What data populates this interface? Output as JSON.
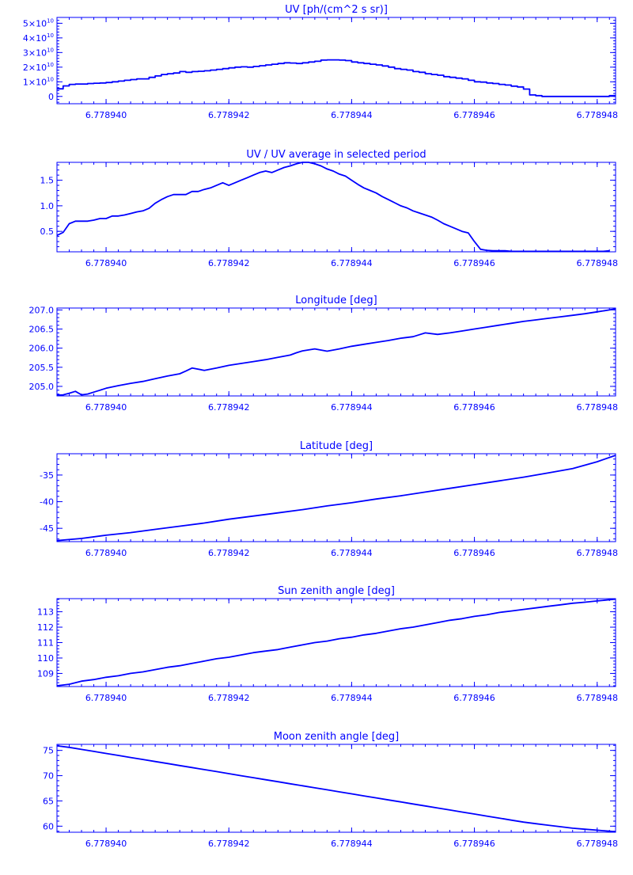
{
  "colors": {
    "ink": "#0000ff",
    "background": "#ffffff"
  },
  "x_ticks": [
    {
      "value": 6.77894,
      "label": "6.778940"
    },
    {
      "value": 6.778942,
      "label": "6.778942"
    },
    {
      "value": 6.778944,
      "label": "6.778944"
    },
    {
      "value": 6.778946,
      "label": "6.778946"
    },
    {
      "value": 6.778948,
      "label": "6.778948"
    }
  ],
  "chart_data": [
    {
      "type": "line",
      "step": true,
      "title": "UV [ph/(cm^2 s sr)]",
      "xlim": [
        6.7789392,
        6.7789483
      ],
      "ylim": [
        -5000000000.0,
        54000000000.0
      ],
      "yticks": [
        {
          "value": 0,
          "label": "0"
        },
        {
          "value": 10000000000.0,
          "label": "1×10",
          "sup": "10"
        },
        {
          "value": 20000000000.0,
          "label": "2×10",
          "sup": "10"
        },
        {
          "value": 30000000000.0,
          "label": "3×10",
          "sup": "10"
        },
        {
          "value": 40000000000.0,
          "label": "4×10",
          "sup": "10"
        },
        {
          "value": 50000000000.0,
          "label": "5×10",
          "sup": "10"
        }
      ],
      "minor_y": 2000000000.0,
      "series": [
        {
          "x": [
            6.7789392,
            6.7789393,
            6.7789394,
            6.7789395,
            6.7789396,
            6.7789397,
            6.7789398,
            6.7789399,
            6.77894,
            6.7789401,
            6.7789402,
            6.7789403,
            6.7789404,
            6.7789405,
            6.7789406,
            6.7789407,
            6.7789408,
            6.7789409,
            6.778941,
            6.7789411,
            6.7789412,
            6.7789413,
            6.7789414,
            6.7789415,
            6.7789416,
            6.7789417,
            6.7789418,
            6.7789419,
            6.778942,
            6.7789421,
            6.7789422,
            6.7789423,
            6.7789424,
            6.7789425,
            6.7789426,
            6.7789427,
            6.7789428,
            6.7789429,
            6.778943,
            6.7789431,
            6.7789432,
            6.7789433,
            6.7789434,
            6.7789435,
            6.7789436,
            6.7789437,
            6.7789438,
            6.7789439,
            6.778944,
            6.7789441,
            6.7789442,
            6.7789443,
            6.7789444,
            6.7789445,
            6.7789446,
            6.7789447,
            6.7789448,
            6.7789449,
            6.778945,
            6.7789451,
            6.7789452,
            6.7789453,
            6.7789454,
            6.7789455,
            6.7789456,
            6.7789457,
            6.7789458,
            6.7789459,
            6.778946,
            6.7789461,
            6.7789462,
            6.7789463,
            6.7789464,
            6.7789465,
            6.7789466,
            6.7789467,
            6.7789468,
            6.7789469,
            6.778947,
            6.7789471,
            6.7789472,
            6.7789473,
            6.7789474,
            6.7789475,
            6.7789476,
            6.7789477,
            6.7789478,
            6.7789479,
            6.778948,
            6.7789481,
            6.7789482
          ],
          "y": [
            5200000000.0,
            7200000000.0,
            8200000000.0,
            8500000000.0,
            8500000000.0,
            8800000000.0,
            9000000000.0,
            9200000000.0,
            9500000000.0,
            10000000000.0,
            10500000000.0,
            11000000000.0,
            11500000000.0,
            12000000000.0,
            12000000000.0,
            13000000000.0,
            14000000000.0,
            15000000000.0,
            15500000000.0,
            16000000000.0,
            17000000000.0,
            16500000000.0,
            17000000000.0,
            17200000000.0,
            17500000000.0,
            18000000000.0,
            18500000000.0,
            19000000000.0,
            19500000000.0,
            20000000000.0,
            20200000000.0,
            20000000000.0,
            20500000000.0,
            21000000000.0,
            21500000000.0,
            22000000000.0,
            22500000000.0,
            23000000000.0,
            22800000000.0,
            22500000000.0,
            23000000000.0,
            23500000000.0,
            24000000000.0,
            24800000000.0,
            25000000000.0,
            25000000000.0,
            24800000000.0,
            24500000000.0,
            23500000000.0,
            23000000000.0,
            22500000000.0,
            22000000000.0,
            21500000000.0,
            20800000000.0,
            20000000000.0,
            19000000000.0,
            18500000000.0,
            18000000000.0,
            17000000000.0,
            16500000000.0,
            15500000000.0,
            15000000000.0,
            14500000000.0,
            13500000000.0,
            13000000000.0,
            12500000000.0,
            12000000000.0,
            11000000000.0,
            10000000000.0,
            9800000000.0,
            9200000000.0,
            8800000000.0,
            8200000000.0,
            7800000000.0,
            7000000000.0,
            6500000000.0,
            5000000000.0,
            1000000000.0,
            500000000.0,
            0,
            0,
            0,
            0,
            0,
            0,
            0,
            0,
            0,
            0,
            0,
            500000000.0
          ]
        }
      ]
    },
    {
      "type": "line",
      "title": "UV / UV average in selected period",
      "xlim": [
        6.7789392,
        6.7789483
      ],
      "ylim": [
        0.1,
        1.85
      ],
      "yticks": [
        {
          "value": 0.5,
          "label": "0.5"
        },
        {
          "value": 1.0,
          "label": "1.0"
        },
        {
          "value": 1.5,
          "label": "1.5"
        }
      ],
      "minor_y": 0.1,
      "series": [
        {
          "x": [
            6.7789392,
            6.7789393,
            6.7789394,
            6.7789395,
            6.7789396,
            6.7789397,
            6.7789398,
            6.7789399,
            6.77894,
            6.7789401,
            6.7789402,
            6.7789403,
            6.7789404,
            6.7789405,
            6.7789406,
            6.7789407,
            6.7789408,
            6.7789409,
            6.778941,
            6.7789411,
            6.7789412,
            6.7789413,
            6.7789414,
            6.7789415,
            6.7789416,
            6.7789417,
            6.7789418,
            6.7789419,
            6.778942,
            6.7789421,
            6.7789422,
            6.7789423,
            6.7789424,
            6.7789425,
            6.7789426,
            6.7789427,
            6.7789428,
            6.7789429,
            6.778943,
            6.7789431,
            6.7789432,
            6.7789433,
            6.7789434,
            6.7789435,
            6.7789436,
            6.7789437,
            6.7789438,
            6.7789439,
            6.778944,
            6.7789441,
            6.7789442,
            6.7789443,
            6.7789444,
            6.7789445,
            6.7789446,
            6.7789447,
            6.7789448,
            6.7789449,
            6.778945,
            6.7789451,
            6.7789452,
            6.7789453,
            6.7789454,
            6.7789455,
            6.7789456,
            6.7789457,
            6.7789458,
            6.7789459,
            6.778946,
            6.7789461,
            6.7789462,
            6.7789463,
            6.7789464,
            6.7789465,
            6.7789466,
            6.7789467,
            6.7789468,
            6.7789469,
            6.778947,
            6.7789471,
            6.7789472,
            6.7789473,
            6.7789474,
            6.7789475,
            6.7789476,
            6.7789477,
            6.7789478,
            6.7789479,
            6.778948,
            6.7789481,
            6.7789482
          ],
          "y": [
            0.42,
            0.48,
            0.65,
            0.7,
            0.7,
            0.7,
            0.72,
            0.75,
            0.75,
            0.8,
            0.8,
            0.82,
            0.85,
            0.88,
            0.9,
            0.95,
            1.05,
            1.12,
            1.18,
            1.22,
            1.22,
            1.22,
            1.28,
            1.28,
            1.32,
            1.35,
            1.4,
            1.45,
            1.4,
            1.45,
            1.5,
            1.55,
            1.6,
            1.65,
            1.68,
            1.65,
            1.7,
            1.75,
            1.78,
            1.82,
            1.85,
            1.85,
            1.82,
            1.78,
            1.72,
            1.68,
            1.62,
            1.58,
            1.5,
            1.42,
            1.35,
            1.3,
            1.25,
            1.18,
            1.12,
            1.06,
            1.0,
            0.96,
            0.9,
            0.86,
            0.82,
            0.78,
            0.72,
            0.65,
            0.6,
            0.55,
            0.5,
            0.47,
            0.3,
            0.15,
            0.13,
            0.12,
            0.12,
            0.12,
            0.11,
            0.11,
            0.11,
            0.11,
            0.11,
            0.11,
            0.11,
            0.11,
            0.11,
            0.11,
            0.11,
            0.11,
            0.11,
            0.11,
            0.11,
            0.11,
            0.12
          ]
        }
      ]
    },
    {
      "type": "line",
      "title": "Longitude [deg]",
      "xlim": [
        6.7789392,
        6.7789483
      ],
      "ylim": [
        204.75,
        207.05
      ],
      "yticks": [
        {
          "value": 205.0,
          "label": "205.0"
        },
        {
          "value": 205.5,
          "label": "205.5"
        },
        {
          "value": 206.0,
          "label": "206.0"
        },
        {
          "value": 206.5,
          "label": "206.5"
        },
        {
          "value": 207.0,
          "label": "207.0"
        }
      ],
      "minor_y": 0.1,
      "series": [
        {
          "x": [
            6.7789392,
            6.7789393,
            6.7789394,
            6.7789395,
            6.7789396,
            6.7789397,
            6.7789398,
            6.7789399,
            6.77894,
            6.7789402,
            6.7789404,
            6.7789406,
            6.7789408,
            6.778941,
            6.7789412,
            6.7789413,
            6.7789414,
            6.7789416,
            6.7789418,
            6.778942,
            6.7789422,
            6.7789424,
            6.7789426,
            6.7789428,
            6.778943,
            6.7789431,
            6.7789432,
            6.7789434,
            6.7789436,
            6.7789438,
            6.778944,
            6.7789442,
            6.7789444,
            6.7789446,
            6.7789448,
            6.778945,
            6.7789451,
            6.7789452,
            6.7789454,
            6.7789456,
            6.7789458,
            6.778946,
            6.7789462,
            6.7789464,
            6.7789466,
            6.7789468,
            6.778947,
            6.7789472,
            6.7789474,
            6.7789476,
            6.7789478,
            6.778948,
            6.7789482,
            6.7789483
          ],
          "y": [
            204.77,
            204.78,
            204.82,
            204.87,
            204.78,
            204.8,
            204.85,
            204.9,
            204.95,
            205.02,
            205.08,
            205.13,
            205.2,
            205.27,
            205.33,
            205.4,
            205.48,
            205.42,
            205.48,
            205.55,
            205.6,
            205.65,
            205.7,
            205.76,
            205.82,
            205.88,
            205.93,
            205.98,
            205.92,
            205.98,
            206.05,
            206.1,
            206.15,
            206.2,
            206.26,
            206.3,
            206.35,
            206.4,
            206.36,
            206.4,
            206.45,
            206.5,
            206.55,
            206.6,
            206.65,
            206.7,
            206.74,
            206.78,
            206.82,
            206.86,
            206.9,
            206.95,
            207.0,
            207.03
          ]
        }
      ]
    },
    {
      "type": "line",
      "title": "Latitude [deg]",
      "xlim": [
        6.7789392,
        6.7789483
      ],
      "ylim": [
        -47.5,
        -31
      ],
      "yticks": [
        {
          "value": -45,
          "label": "-45"
        },
        {
          "value": -40,
          "label": "-40"
        },
        {
          "value": -35,
          "label": "-35"
        }
      ],
      "minor_y": 1,
      "series": [
        {
          "x": [
            6.7789392,
            6.7789396,
            6.77894,
            6.7789404,
            6.7789408,
            6.7789412,
            6.7789416,
            6.778942,
            6.7789424,
            6.7789428,
            6.7789432,
            6.7789436,
            6.778944,
            6.7789444,
            6.7789448,
            6.7789452,
            6.7789456,
            6.778946,
            6.7789464,
            6.7789468,
            6.7789472,
            6.7789476,
            6.778948,
            6.7789483
          ],
          "y": [
            -47.3,
            -46.9,
            -46.3,
            -45.8,
            -45.2,
            -44.6,
            -44.0,
            -43.3,
            -42.7,
            -42.1,
            -41.5,
            -40.8,
            -40.2,
            -39.5,
            -38.9,
            -38.2,
            -37.5,
            -36.8,
            -36.1,
            -35.4,
            -34.6,
            -33.8,
            -32.5,
            -31.3
          ]
        }
      ]
    },
    {
      "type": "line",
      "title": "Sun zenith angle [deg]",
      "xlim": [
        6.7789392,
        6.7789483
      ],
      "ylim": [
        108.15,
        113.85
      ],
      "yticks": [
        {
          "value": 109,
          "label": "109"
        },
        {
          "value": 110,
          "label": "110"
        },
        {
          "value": 111,
          "label": "111"
        },
        {
          "value": 112,
          "label": "112"
        },
        {
          "value": 113,
          "label": "113"
        }
      ],
      "minor_y": 0.2,
      "series": [
        {
          "x": [
            6.7789392,
            6.7789394,
            6.7789396,
            6.7789398,
            6.77894,
            6.7789402,
            6.7789404,
            6.7789406,
            6.7789408,
            6.778941,
            6.7789412,
            6.7789414,
            6.7789416,
            6.7789418,
            6.778942,
            6.7789422,
            6.7789424,
            6.7789426,
            6.7789428,
            6.778943,
            6.7789432,
            6.7789434,
            6.7789436,
            6.7789438,
            6.778944,
            6.7789442,
            6.7789444,
            6.7789446,
            6.7789448,
            6.778945,
            6.7789452,
            6.7789454,
            6.7789456,
            6.7789458,
            6.778946,
            6.7789462,
            6.7789464,
            6.7789466,
            6.7789468,
            6.778947,
            6.7789472,
            6.7789474,
            6.7789476,
            6.7789478,
            6.778948,
            6.7789482,
            6.7789483
          ],
          "y": [
            108.2,
            108.3,
            108.5,
            108.6,
            108.75,
            108.85,
            109.0,
            109.1,
            109.25,
            109.4,
            109.5,
            109.65,
            109.8,
            109.95,
            110.05,
            110.2,
            110.35,
            110.45,
            110.55,
            110.7,
            110.85,
            111.0,
            111.1,
            111.25,
            111.35,
            111.5,
            111.6,
            111.75,
            111.9,
            112.0,
            112.15,
            112.3,
            112.45,
            112.55,
            112.7,
            112.8,
            112.95,
            113.05,
            113.15,
            113.25,
            113.35,
            113.45,
            113.55,
            113.62,
            113.7,
            113.78,
            113.82
          ]
        }
      ]
    },
    {
      "type": "line",
      "title": "Moon zenith angle [deg]",
      "xlim": [
        6.7789392,
        6.7789483
      ],
      "ylim": [
        58.8,
        76.2
      ],
      "yticks": [
        {
          "value": 60,
          "label": "60"
        },
        {
          "value": 65,
          "label": "65"
        },
        {
          "value": 70,
          "label": "70"
        },
        {
          "value": 75,
          "label": "75"
        }
      ],
      "minor_y": 1,
      "series": [
        {
          "x": [
            6.7789392,
            6.7789394,
            6.7789396,
            6.7789398,
            6.77894,
            6.7789402,
            6.7789404,
            6.7789406,
            6.7789408,
            6.778941,
            6.7789412,
            6.7789414,
            6.7789416,
            6.7789418,
            6.778942,
            6.7789422,
            6.7789424,
            6.7789426,
            6.7789428,
            6.778943,
            6.7789432,
            6.7789434,
            6.7789436,
            6.7789438,
            6.778944,
            6.7789442,
            6.7789444,
            6.7789446,
            6.7789448,
            6.778945,
            6.7789452,
            6.7789454,
            6.7789456,
            6.7789458,
            6.778946,
            6.7789462,
            6.7789464,
            6.7789466,
            6.7789468,
            6.778947,
            6.7789472,
            6.7789474,
            6.7789476,
            6.7789478,
            6.778948,
            6.7789482,
            6.7789483
          ],
          "y": [
            75.9,
            75.6,
            75.2,
            74.8,
            74.4,
            74.0,
            73.6,
            73.2,
            72.8,
            72.4,
            72.0,
            71.6,
            71.2,
            70.8,
            70.4,
            70.0,
            69.6,
            69.2,
            68.8,
            68.4,
            68.0,
            67.6,
            67.2,
            66.8,
            66.4,
            66.0,
            65.6,
            65.2,
            64.8,
            64.4,
            64.0,
            63.6,
            63.2,
            62.8,
            62.4,
            62.0,
            61.6,
            61.2,
            60.8,
            60.5,
            60.2,
            59.9,
            59.6,
            59.4,
            59.2,
            59.0,
            58.9
          ]
        }
      ]
    }
  ]
}
